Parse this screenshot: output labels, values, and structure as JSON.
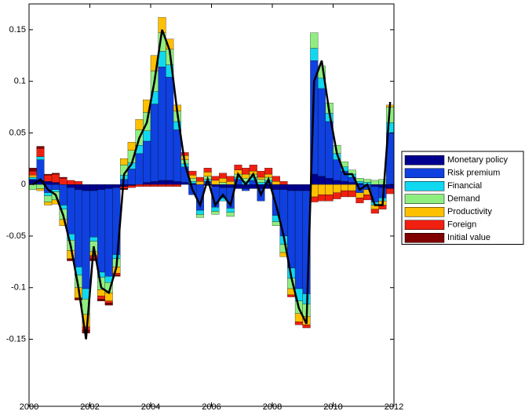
{
  "chart_data": {
    "type": "bar",
    "x": [
      2000,
      2000.25,
      2000.5,
      2000.75,
      2001,
      2001.25,
      2001.5,
      2001.75,
      2002,
      2002.25,
      2002.5,
      2002.75,
      2003,
      2003.25,
      2003.5,
      2003.75,
      2004,
      2004.25,
      2004.5,
      2004.75,
      2005,
      2005.25,
      2005.5,
      2005.75,
      2006,
      2006.25,
      2006.5,
      2006.75,
      2007,
      2007.25,
      2007.5,
      2007.75,
      2008,
      2008.25,
      2008.5,
      2008.75,
      2009,
      2009.25,
      2009.5,
      2009.75,
      2010,
      2010.25,
      2010.5,
      2010.75,
      2011,
      2011.25,
      2011.5,
      2011.75
    ],
    "series": [
      {
        "name": "Monetary policy",
        "color": "#00008f",
        "values": [
          0.005,
          0.004,
          0.003,
          0.002,
          0.0,
          -0.003,
          -0.005,
          -0.006,
          -0.006,
          -0.005,
          -0.004,
          -0.003,
          -0.002,
          -0.001,
          0.0,
          0.002,
          0.003,
          0.004,
          0.004,
          0.003,
          0.002,
          0.001,
          0.0,
          -0.001,
          -0.002,
          -0.003,
          -0.003,
          -0.004,
          -0.004,
          -0.004,
          -0.004,
          -0.004,
          -0.005,
          -0.005,
          -0.006,
          -0.006,
          -0.006,
          0.01,
          0.008,
          0.006,
          0.004,
          0.003,
          0.002,
          0.001,
          0.0,
          -0.002,
          -0.003,
          -0.004
        ]
      },
      {
        "name": "Risk premium",
        "color": "#0f40e0",
        "values": [
          0.0,
          0.02,
          -0.008,
          -0.005,
          -0.02,
          -0.045,
          -0.075,
          -0.095,
          -0.045,
          -0.08,
          -0.085,
          -0.065,
          0.005,
          0.015,
          0.03,
          0.04,
          0.075,
          0.11,
          0.1,
          0.05,
          0.015,
          -0.01,
          -0.025,
          0.003,
          -0.02,
          -0.01,
          -0.02,
          0.005,
          -0.002,
          0.004,
          -0.012,
          0.002,
          -0.025,
          -0.045,
          -0.075,
          -0.095,
          -0.1,
          0.11,
          0.085,
          0.055,
          0.02,
          0.01,
          0.005,
          -0.008,
          -0.005,
          -0.015,
          -0.01,
          0.05
        ]
      },
      {
        "name": "Financial",
        "color": "#10d8f0",
        "values": [
          0.002,
          0.003,
          -0.003,
          -0.002,
          -0.004,
          -0.006,
          -0.008,
          -0.01,
          -0.004,
          -0.005,
          -0.006,
          -0.004,
          0.004,
          0.006,
          0.008,
          0.01,
          0.012,
          0.015,
          0.012,
          0.008,
          0.003,
          0.002,
          -0.004,
          0.002,
          -0.004,
          -0.003,
          -0.004,
          0.002,
          0.003,
          0.003,
          0.002,
          0.002,
          -0.006,
          -0.008,
          -0.01,
          -0.012,
          -0.01,
          0.012,
          0.01,
          0.008,
          0.006,
          0.004,
          0.003,
          0.002,
          0.002,
          -0.003,
          -0.003,
          0.01
        ]
      },
      {
        "name": "Demand",
        "color": "#8fee80",
        "values": [
          -0.005,
          -0.004,
          -0.006,
          -0.008,
          -0.01,
          -0.01,
          -0.012,
          -0.015,
          -0.01,
          -0.012,
          -0.01,
          -0.008,
          0.01,
          0.012,
          0.015,
          0.018,
          0.02,
          0.018,
          0.015,
          0.01,
          0.004,
          0.003,
          -0.003,
          0.003,
          -0.003,
          0.002,
          -0.004,
          0.003,
          0.003,
          0.003,
          0.003,
          0.003,
          -0.004,
          -0.008,
          -0.01,
          -0.012,
          -0.012,
          0.015,
          0.012,
          0.01,
          0.008,
          0.005,
          0.004,
          0.003,
          0.003,
          0.004,
          0.005,
          0.015
        ]
      },
      {
        "name": "Productivity",
        "color": "#ffc000",
        "values": [
          0.002,
          -0.002,
          -0.003,
          -0.004,
          -0.006,
          -0.008,
          -0.01,
          -0.012,
          -0.004,
          -0.006,
          -0.008,
          -0.006,
          0.006,
          0.008,
          0.01,
          0.012,
          0.015,
          0.015,
          0.01,
          0.006,
          0.004,
          0.003,
          0.003,
          0.004,
          0.004,
          0.004,
          0.003,
          0.004,
          0.004,
          0.003,
          0.002,
          0.003,
          0.003,
          -0.004,
          -0.006,
          -0.008,
          -0.008,
          -0.012,
          -0.01,
          -0.01,
          -0.008,
          -0.006,
          -0.006,
          -0.005,
          -0.005,
          -0.004,
          -0.004,
          0.002
        ]
      },
      {
        "name": "Foreign",
        "color": "#f02010",
        "values": [
          0.004,
          0.008,
          0.006,
          0.008,
          0.006,
          0.004,
          0.003,
          -0.003,
          -0.003,
          -0.003,
          -0.002,
          -0.002,
          -0.002,
          -0.002,
          -0.002,
          -0.002,
          -0.002,
          -0.002,
          -0.002,
          -0.002,
          0.003,
          0.004,
          0.004,
          0.004,
          0.004,
          0.005,
          0.005,
          0.005,
          0.006,
          0.006,
          0.006,
          0.006,
          0.005,
          0.003,
          -0.002,
          -0.003,
          -0.003,
          -0.005,
          -0.006,
          -0.006,
          -0.006,
          -0.006,
          -0.006,
          -0.005,
          -0.005,
          -0.004,
          -0.004,
          -0.005
        ]
      },
      {
        "name": "Initial value",
        "color": "#800000",
        "values": [
          0.003,
          0.002,
          0.001,
          0.001,
          0.001,
          -0.002,
          -0.002,
          -0.003,
          -0.002,
          -0.002,
          -0.002,
          -0.001,
          -0.001,
          0,
          0,
          0,
          0,
          0,
          0,
          0,
          0,
          0,
          0,
          0,
          0,
          0,
          0,
          0,
          0,
          0,
          0,
          0,
          0,
          0,
          0,
          0,
          0,
          0,
          0,
          0,
          0,
          0,
          0,
          0,
          0,
          0,
          0,
          0
        ]
      }
    ],
    "line": {
      "color": "#000000",
      "values": [
        0.0,
        0.005,
        -0.005,
        -0.01,
        -0.03,
        -0.06,
        -0.1,
        -0.15,
        -0.06,
        -0.1,
        -0.105,
        -0.08,
        0.01,
        0.02,
        0.045,
        0.06,
        0.1,
        0.15,
        0.13,
        0.07,
        0.02,
        -0.005,
        -0.02,
        0.005,
        -0.02,
        -0.01,
        -0.02,
        0.01,
        0.0,
        0.01,
        -0.01,
        0.005,
        -0.02,
        -0.05,
        -0.09,
        -0.12,
        -0.135,
        0.1,
        0.12,
        0.07,
        0.03,
        0.01,
        0.01,
        -0.005,
        0.0,
        -0.02,
        -0.02,
        0.08
      ]
    },
    "xlim": [
      2000,
      2012
    ],
    "xticks": [
      2000,
      2002,
      2004,
      2006,
      2008,
      2010,
      2012
    ],
    "ylim": [
      -0.215,
      0.175
    ],
    "yticks": [
      -0.15,
      -0.1,
      -0.05,
      0,
      0.05,
      0.1,
      0.15
    ],
    "legend": "right"
  }
}
